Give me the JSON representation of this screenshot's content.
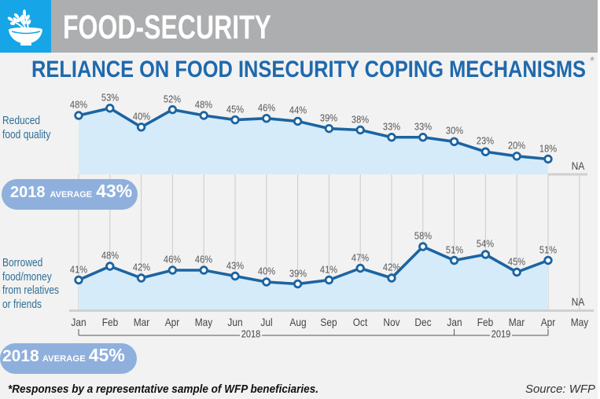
{
  "header": {
    "icon": "bowl-wheat-icon",
    "title": "FOOD-SECURITY"
  },
  "colors": {
    "header_blue": "#16a5e6",
    "header_gray": "#adaeb0",
    "panel_bg": "#f2f2f2",
    "title_blue": "#1f69ad",
    "series_label": "#2e6e96",
    "line": "#1c64a2",
    "area_fill": "#d5ebf9",
    "pill": "#8fb0dc",
    "gridline": "#cbcbcb",
    "baseline": "#d0d0d0",
    "bracket": "#555555"
  },
  "chart_data": {
    "type": "line",
    "title": "RELIANCE ON FOOD INSECURITY COPING MECHANISMS",
    "title_marker": "*",
    "xlabel": "",
    "ylabel": "",
    "grid": "vertical",
    "categories": [
      "Jan",
      "Feb",
      "Mar",
      "Apr",
      "May",
      "Jun",
      "Jul",
      "Aug",
      "Sep",
      "Oct",
      "Nov",
      "Dec",
      "Jan",
      "Feb",
      "Mar",
      "Apr",
      "May"
    ],
    "year_groups": [
      {
        "label": "2018",
        "start": 0,
        "end": 11
      },
      {
        "label": "2019",
        "start": 12,
        "end": 15
      }
    ],
    "missing_label": "NA",
    "series": [
      {
        "name": "Reduced food quality",
        "name_lines": [
          "Reduced",
          "food quality"
        ],
        "values": [
          48,
          53,
          40,
          52,
          48,
          45,
          46,
          44,
          39,
          38,
          33,
          33,
          30,
          23,
          20,
          18,
          null
        ],
        "value_labels": [
          "48%",
          "53%",
          "40%",
          "52%",
          "48%",
          "45%",
          "46%",
          "44%",
          "39%",
          "38%",
          "33%",
          "33%",
          "30%",
          "23%",
          "20%",
          "18%",
          null
        ],
        "average": {
          "year": "2018",
          "label": "AVERAGE",
          "value": "43%"
        }
      },
      {
        "name": "Borrowed food/money from relatives or friends",
        "name_lines": [
          "Borrowed",
          "food/money",
          "from relatives",
          "or friends"
        ],
        "values": [
          41,
          48,
          42,
          46,
          46,
          43,
          40,
          39,
          41,
          47,
          42,
          58,
          51,
          54,
          45,
          51,
          null
        ],
        "value_labels": [
          "41%",
          "48%",
          "42%",
          "46%",
          "46%",
          "43%",
          "40%",
          "39%",
          "41%",
          "47%",
          "42%",
          "58%",
          "51%",
          "54%",
          "45%",
          "51%",
          null
        ],
        "average": {
          "year": "2018",
          "label": "AVERAGE",
          "value": "45%"
        }
      }
    ]
  },
  "footer": {
    "note": "*Responses by a representative sample of WFP beneficiaries.",
    "source": "Source: WFP"
  }
}
